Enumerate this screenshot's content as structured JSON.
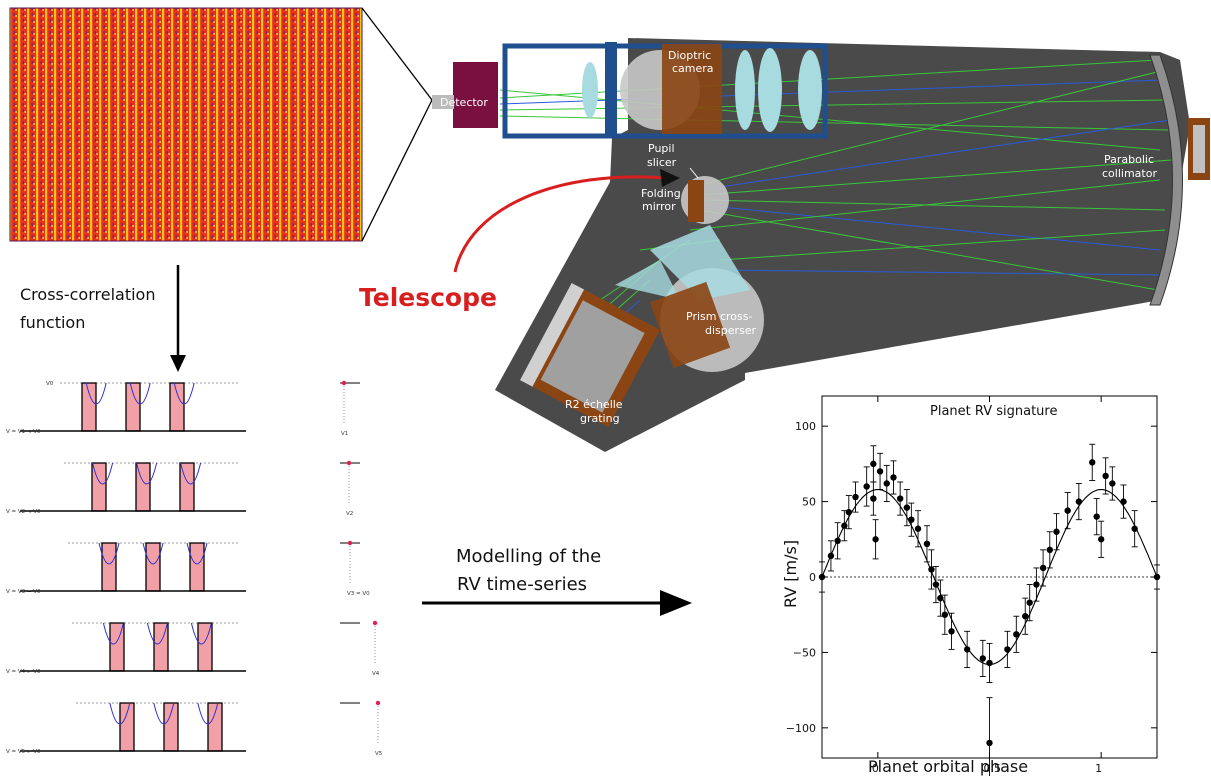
{
  "spectrograph": {
    "labels": {
      "detector": "Detector",
      "camera_1": "Dioptric",
      "camera_2": "camera",
      "pupil_1": "Pupil",
      "pupil_2": "slicer",
      "folding_1": "Folding",
      "folding_2": "mirror",
      "collimator_1": "Parabolic",
      "collimator_2": "collimator",
      "prism_1": "Prism cross-",
      "prism_2": "disperser",
      "grating_1": "R2 échelle",
      "grating_2": "grating"
    },
    "telescope": "Telescope",
    "colors": {
      "body": "#4a4a4a",
      "lens": "#a8dbe0",
      "mount": "#8b4513",
      "frame": "#1f4f8f",
      "ray_green": "#3ac63a",
      "ray_blue": "#2a5ad8",
      "telescope": "#d81e1e",
      "detector": "#7a1040"
    }
  },
  "ccf": {
    "title_1": "Cross-correlation",
    "title_2": "function",
    "rows": [
      {
        "left": "V = V1 < V0",
        "small": "V1",
        "top": "V0"
      },
      {
        "left": "V = V2 < V0",
        "small": "V2"
      },
      {
        "left": "V = V3 = V0",
        "small": "V3 = V0"
      },
      {
        "left": "V = V4 > V0",
        "small": "V4"
      },
      {
        "left": "V = V5 > V0",
        "small": "V5"
      }
    ]
  },
  "modelling": {
    "line_1": "Modelling of the",
    "line_2": "RV time-series"
  },
  "chart_data": {
    "type": "scatter",
    "title": "Planet RV signature",
    "xlabel": "Planet orbital phase",
    "ylabel": "RV [m/s]",
    "xlim": [
      -0.25,
      1.25
    ],
    "ylim": [
      -120,
      120
    ],
    "xticks": [
      0,
      0.5,
      1
    ],
    "xtick_labels": [
      "0",
      "0.5",
      "1"
    ],
    "yticks": [
      -100,
      -50,
      0,
      50,
      100
    ],
    "ytick_labels": [
      "−100",
      "−50",
      "0",
      "50",
      "100"
    ],
    "model": {
      "amplitude": 58,
      "phase_of_max": 0.0
    },
    "points": [
      {
        "x": -0.25,
        "y": 0,
        "e": 10
      },
      {
        "x": -0.21,
        "y": 14,
        "e": 10
      },
      {
        "x": -0.18,
        "y": 24,
        "e": 12
      },
      {
        "x": -0.15,
        "y": 34,
        "e": 10
      },
      {
        "x": -0.13,
        "y": 43,
        "e": 11
      },
      {
        "x": -0.1,
        "y": 53,
        "e": 10
      },
      {
        "x": -0.05,
        "y": 60,
        "e": 13
      },
      {
        "x": -0.02,
        "y": 75,
        "e": 12
      },
      {
        "x": -0.02,
        "y": 52,
        "e": 11
      },
      {
        "x": -0.01,
        "y": 25,
        "e": 13
      },
      {
        "x": 0.01,
        "y": 70,
        "e": 12
      },
      {
        "x": 0.04,
        "y": 62,
        "e": 12
      },
      {
        "x": 0.07,
        "y": 66,
        "e": 11
      },
      {
        "x": 0.1,
        "y": 52,
        "e": 11
      },
      {
        "x": 0.13,
        "y": 46,
        "e": 12
      },
      {
        "x": 0.15,
        "y": 38,
        "e": 11
      },
      {
        "x": 0.18,
        "y": 32,
        "e": 12
      },
      {
        "x": 0.22,
        "y": 22,
        "e": 12
      },
      {
        "x": 0.24,
        "y": 5,
        "e": 13
      },
      {
        "x": 0.26,
        "y": -5,
        "e": 12
      },
      {
        "x": 0.28,
        "y": -14,
        "e": 12
      },
      {
        "x": 0.3,
        "y": -25,
        "e": 13
      },
      {
        "x": 0.33,
        "y": -36,
        "e": 12
      },
      {
        "x": 0.4,
        "y": -48,
        "e": 12
      },
      {
        "x": 0.47,
        "y": -54,
        "e": 12
      },
      {
        "x": 0.5,
        "y": -57,
        "e": 13
      },
      {
        "x": 0.5,
        "y": -110,
        "e": 30
      },
      {
        "x": 0.58,
        "y": -48,
        "e": 12
      },
      {
        "x": 0.62,
        "y": -38,
        "e": 12
      },
      {
        "x": 0.66,
        "y": -26,
        "e": 12
      },
      {
        "x": 0.68,
        "y": -17,
        "e": 12
      },
      {
        "x": 0.71,
        "y": -5,
        "e": 11
      },
      {
        "x": 0.74,
        "y": 6,
        "e": 12
      },
      {
        "x": 0.77,
        "y": 18,
        "e": 12
      },
      {
        "x": 0.8,
        "y": 30,
        "e": 12
      },
      {
        "x": 0.85,
        "y": 44,
        "e": 12
      },
      {
        "x": 0.9,
        "y": 50,
        "e": 12
      },
      {
        "x": 0.96,
        "y": 76,
        "e": 12
      },
      {
        "x": 0.98,
        "y": 40,
        "e": 12
      },
      {
        "x": 1.0,
        "y": 25,
        "e": 12
      },
      {
        "x": 1.02,
        "y": 67,
        "e": 12
      },
      {
        "x": 1.05,
        "y": 62,
        "e": 11
      },
      {
        "x": 1.1,
        "y": 50,
        "e": 11
      },
      {
        "x": 1.15,
        "y": 32,
        "e": 12
      },
      {
        "x": 1.25,
        "y": 0,
        "e": 8
      }
    ]
  }
}
